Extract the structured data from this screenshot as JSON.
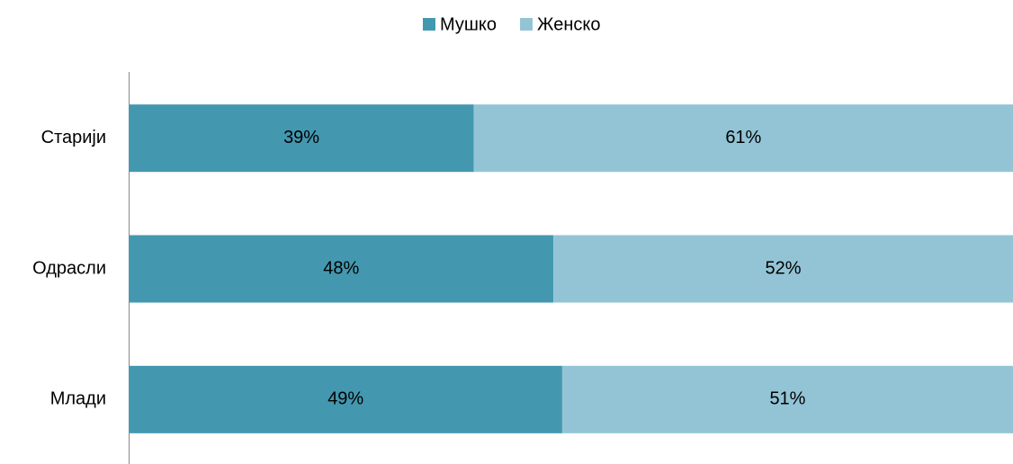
{
  "chart_data": {
    "type": "stacked-bar-horizontal",
    "categories": [
      "Старији",
      "Одрасли",
      "Млади"
    ],
    "xlim": [
      0,
      100
    ],
    "series": [
      {
        "name": "Мушко",
        "color": "#4398b0",
        "values": [
          39,
          48,
          49
        ],
        "value_labels": [
          "39%",
          "48%",
          "49%"
        ]
      },
      {
        "name": "Женско",
        "color": "#93c4d6",
        "values": [
          61,
          52,
          51
        ],
        "value_labels": [
          "61%",
          "52%",
          "51%"
        ]
      }
    ],
    "legend": "top"
  }
}
